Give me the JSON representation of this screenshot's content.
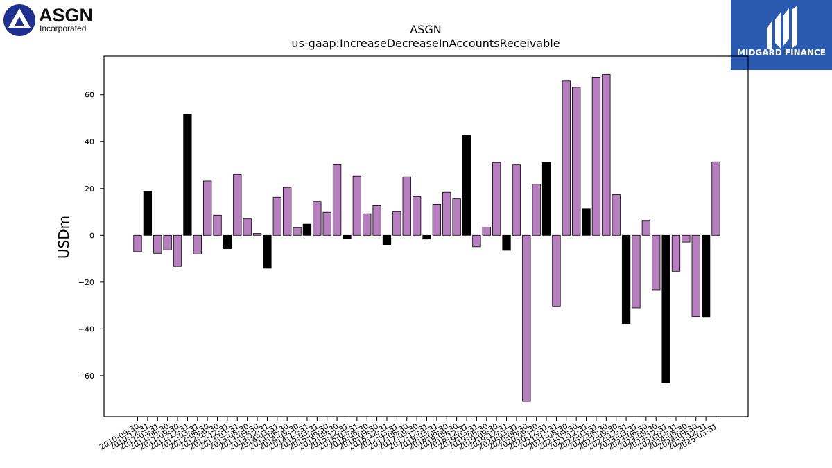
{
  "brand": {
    "ticker_logo_text": "ASGN",
    "ticker_logo_subtext": "Incorporated",
    "sponsor_logo_text": "MIDGARD FINANCE",
    "sponsor_color": "#2a59b0"
  },
  "colors": {
    "bar_default": "#b87fc0",
    "bar_highlight": "#000000",
    "bar_edge": "#000000"
  },
  "chart_data": {
    "type": "bar",
    "title": "ASGN",
    "subtitle": "us-gaap:IncreaseDecreaseInAccountsReceivable",
    "xlabel": "",
    "ylabel": "USDm",
    "ylim": [
      -77.5,
      76.5
    ],
    "yticks": [
      -60,
      -40,
      -20,
      0,
      20,
      40,
      60
    ],
    "grid": false,
    "categories": [
      "2010-09-30",
      "2010-12-31",
      "2011-03-31",
      "2011-06-30",
      "2011-09-30",
      "2011-12-31",
      "2012-03-31",
      "2012-06-30",
      "2012-09-30",
      "2012-12-31",
      "2013-03-31",
      "2013-06-30",
      "2013-09-30",
      "2013-12-31",
      "2014-03-31",
      "2014-06-30",
      "2014-09-30",
      "2014-12-31",
      "2015-03-31",
      "2015-06-30",
      "2015-09-30",
      "2015-12-31",
      "2016-03-31",
      "2016-06-30",
      "2016-09-30",
      "2016-12-31",
      "2017-03-31",
      "2017-06-30",
      "2017-09-30",
      "2017-12-31",
      "2018-03-31",
      "2018-06-30",
      "2018-09-30",
      "2018-12-31",
      "2019-03-31",
      "2019-06-30",
      "2019-09-30",
      "2019-12-31",
      "2020-03-31",
      "2020-06-30",
      "2020-09-30",
      "2020-12-31",
      "2021-03-31",
      "2021-06-30",
      "2021-09-30",
      "2021-12-31",
      "2022-03-31",
      "2022-06-30",
      "2022-09-30",
      "2022-12-31",
      "2023-03-31",
      "2023-06-30",
      "2023-09-30",
      "2023-12-31",
      "2024-03-31",
      "2024-06-30",
      "2024-09-30",
      "2024-12-31",
      "2025-03-31"
    ],
    "values": [
      -7.0,
      18.8,
      -7.7,
      -6.2,
      -13.3,
      51.8,
      -8.0,
      23.2,
      8.6,
      -5.7,
      26.0,
      7.0,
      0.8,
      -14.1,
      16.3,
      20.5,
      3.3,
      4.8,
      14.4,
      9.8,
      30.2,
      -1.3,
      25.2,
      9.2,
      12.7,
      -4.0,
      10.1,
      24.9,
      16.6,
      -1.6,
      13.3,
      18.4,
      15.6,
      42.7,
      -4.9,
      3.5,
      31.0,
      -6.4,
      30.1,
      -71.0,
      21.8,
      31.1,
      -30.5,
      65.9,
      63.2,
      11.4,
      67.5,
      68.7,
      17.4,
      -37.8,
      -31.0,
      6.1,
      -23.3,
      -63.0,
      -15.4,
      -2.9,
      -34.7,
      -34.8,
      31.4
    ],
    "highlight": [
      false,
      true,
      false,
      false,
      false,
      true,
      false,
      false,
      false,
      true,
      false,
      false,
      false,
      true,
      false,
      false,
      false,
      true,
      false,
      false,
      false,
      true,
      false,
      false,
      false,
      true,
      false,
      false,
      false,
      true,
      false,
      false,
      false,
      true,
      false,
      false,
      false,
      true,
      false,
      false,
      false,
      true,
      false,
      false,
      false,
      true,
      false,
      false,
      false,
      true,
      false,
      false,
      false,
      true,
      false,
      false,
      false,
      true,
      false
    ]
  }
}
